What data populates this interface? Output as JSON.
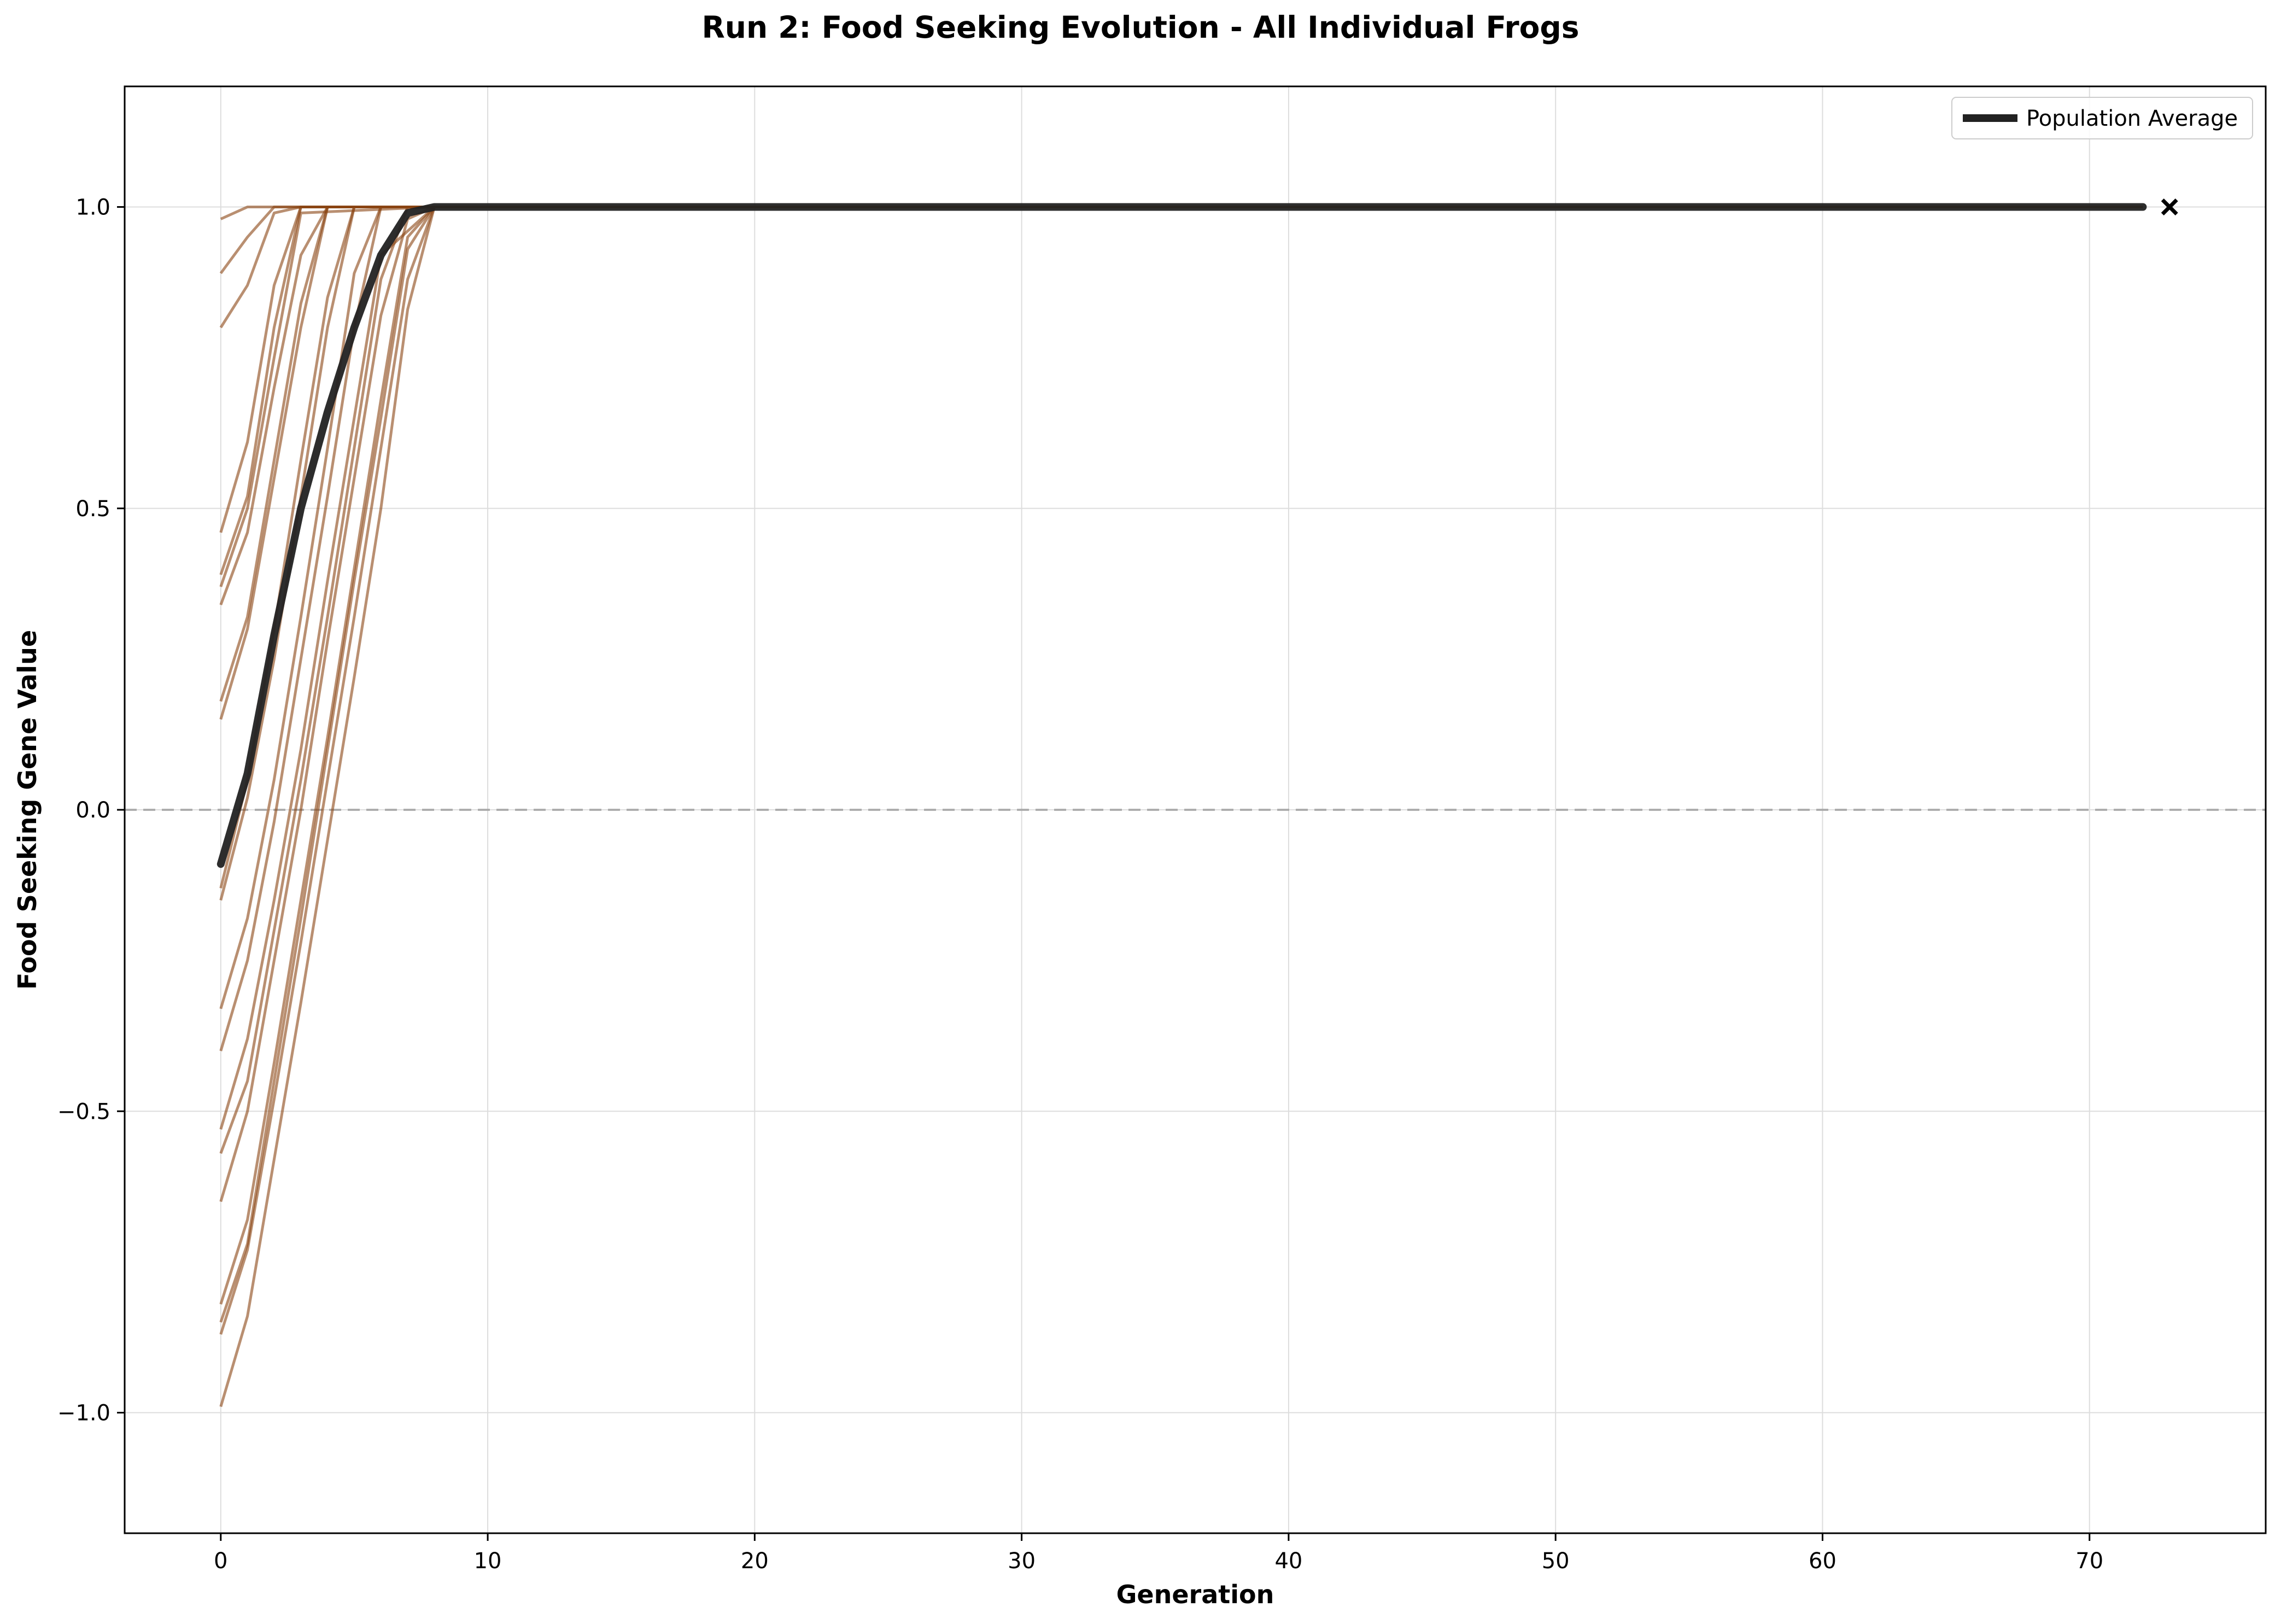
{
  "chart_data": {
    "type": "line",
    "title": "Run 2: Food Seeking Evolution - All Individual Frogs",
    "xlabel": "Generation",
    "ylabel": "Food Seeking Gene Value",
    "xlim": [
      -3.6,
      76.6
    ],
    "ylim": [
      -1.2,
      1.2
    ],
    "xticks": [
      0,
      10,
      20,
      30,
      40,
      50,
      60,
      70
    ],
    "yticks": [
      -1.0,
      -0.5,
      0.0,
      0.5,
      1.0
    ],
    "xtick_labels": [
      "0",
      "10",
      "20",
      "30",
      "40",
      "50",
      "60",
      "70"
    ],
    "ytick_labels": [
      "−1.0",
      "−0.5",
      "0.0",
      "0.5",
      "1.0"
    ],
    "grid": true,
    "reference_line_y": 0.0,
    "legend": {
      "placement": "upper-right",
      "entries": [
        "Population Average"
      ]
    },
    "colors": {
      "individual": "#8b4513",
      "average": "#222222",
      "reference": "#999999",
      "grid": "#dddddd"
    },
    "individual_series": [
      {
        "x": [
          0,
          1,
          2,
          8,
          72
        ],
        "y": [
          0.98,
          1.0,
          1.0,
          1.0,
          1.0
        ]
      },
      {
        "x": [
          0,
          1,
          2,
          8,
          72
        ],
        "y": [
          0.89,
          0.95,
          1.0,
          1.0,
          1.0
        ]
      },
      {
        "x": [
          0,
          1,
          2,
          3,
          8,
          72
        ],
        "y": [
          0.8,
          0.87,
          0.99,
          1.0,
          1.0,
          1.0
        ]
      },
      {
        "x": [
          0,
          1,
          2,
          3,
          8,
          72
        ],
        "y": [
          0.46,
          0.61,
          0.87,
          1.0,
          1.0,
          1.0
        ]
      },
      {
        "x": [
          0,
          1,
          2,
          3,
          8,
          72
        ],
        "y": [
          0.39,
          0.52,
          0.8,
          1.0,
          1.0,
          1.0
        ]
      },
      {
        "x": [
          0,
          1,
          2,
          3,
          8,
          72
        ],
        "y": [
          0.37,
          0.5,
          0.75,
          0.99,
          1.0,
          1.0
        ]
      },
      {
        "x": [
          0,
          1,
          2,
          3,
          4,
          8,
          72
        ],
        "y": [
          0.34,
          0.46,
          0.7,
          0.92,
          1.0,
          1.0,
          1.0
        ]
      },
      {
        "x": [
          0,
          1,
          2,
          3,
          4,
          8,
          72
        ],
        "y": [
          0.18,
          0.32,
          0.58,
          0.84,
          1.0,
          1.0,
          1.0
        ]
      },
      {
        "x": [
          0,
          1,
          2,
          3,
          4,
          8,
          72
        ],
        "y": [
          0.15,
          0.3,
          0.55,
          0.8,
          1.0,
          1.0,
          1.0
        ]
      },
      {
        "x": [
          0,
          1,
          2,
          3,
          4,
          5,
          8,
          72
        ],
        "y": [
          -0.13,
          0.05,
          0.3,
          0.58,
          0.85,
          1.0,
          1.0,
          1.0
        ]
      },
      {
        "x": [
          0,
          1,
          2,
          3,
          4,
          5,
          8,
          72
        ],
        "y": [
          -0.15,
          0.02,
          0.25,
          0.52,
          0.8,
          1.0,
          1.0,
          1.0
        ]
      },
      {
        "x": [
          0,
          1,
          2,
          3,
          4,
          5,
          6,
          8,
          72
        ],
        "y": [
          -0.33,
          -0.18,
          0.05,
          0.32,
          0.6,
          0.89,
          1.0,
          1.0,
          1.0
        ]
      },
      {
        "x": [
          0,
          1,
          2,
          3,
          4,
          5,
          6,
          8,
          72
        ],
        "y": [
          -0.4,
          -0.25,
          -0.02,
          0.25,
          0.52,
          0.8,
          1.0,
          1.0,
          1.0
        ]
      },
      {
        "x": [
          0,
          1,
          2,
          3,
          4,
          5,
          6,
          8,
          72
        ],
        "y": [
          -0.53,
          -0.38,
          -0.15,
          0.1,
          0.38,
          0.65,
          0.92,
          1.0,
          1.0
        ]
      },
      {
        "x": [
          0,
          1,
          2,
          3,
          4,
          5,
          6,
          7,
          8,
          72
        ],
        "y": [
          -0.57,
          -0.45,
          -0.2,
          0.05,
          0.32,
          0.6,
          0.88,
          1.0,
          1.0,
          1.0
        ]
      },
      {
        "x": [
          0,
          1,
          2,
          3,
          4,
          5,
          6,
          7,
          8,
          72
        ],
        "y": [
          -0.65,
          -0.5,
          -0.25,
          0.0,
          0.28,
          0.55,
          0.82,
          0.98,
          1.0,
          1.0
        ]
      },
      {
        "x": [
          0,
          1,
          2,
          3,
          4,
          5,
          6,
          7,
          8,
          72
        ],
        "y": [
          -0.82,
          -0.68,
          -0.42,
          -0.15,
          0.12,
          0.4,
          0.68,
          0.95,
          1.0,
          1.0
        ]
      },
      {
        "x": [
          0,
          1,
          2,
          3,
          4,
          5,
          6,
          7,
          8,
          72
        ],
        "y": [
          -0.85,
          -0.72,
          -0.45,
          -0.18,
          0.1,
          0.38,
          0.65,
          0.93,
          1.0,
          1.0
        ]
      },
      {
        "x": [
          0,
          1,
          2,
          3,
          4,
          5,
          6,
          7,
          8,
          72
        ],
        "y": [
          -0.87,
          -0.73,
          -0.48,
          -0.22,
          0.05,
          0.32,
          0.6,
          0.88,
          1.0,
          1.0
        ]
      },
      {
        "x": [
          0,
          1,
          2,
          3,
          4,
          5,
          6,
          7,
          8,
          72
        ],
        "y": [
          -0.99,
          -0.84,
          -0.58,
          -0.32,
          -0.05,
          0.22,
          0.5,
          0.83,
          1.0,
          1.0
        ]
      }
    ],
    "average_series": {
      "name": "Population Average",
      "x": [
        0,
        1,
        2,
        3,
        4,
        5,
        6,
        7,
        8,
        72
      ],
      "y": [
        -0.09,
        0.06,
        0.29,
        0.5,
        0.66,
        0.8,
        0.92,
        0.99,
        1.0,
        1.0
      ],
      "end_marker": {
        "x": 73,
        "y": 1.0,
        "symbol": "x"
      }
    }
  }
}
